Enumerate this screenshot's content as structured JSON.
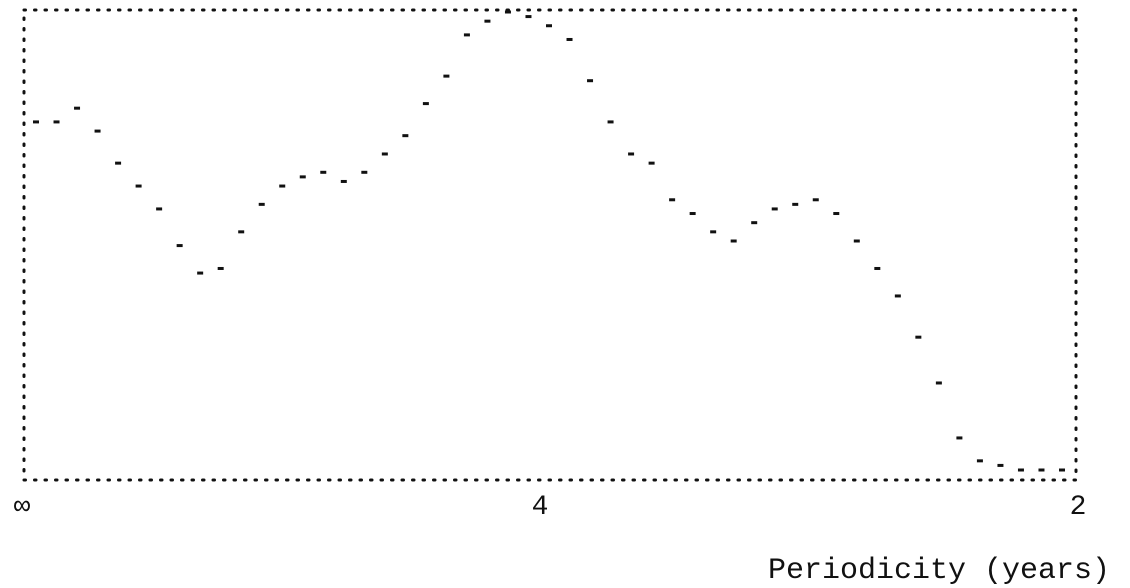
{
  "chart_data": {
    "type": "line",
    "xlabel": "Periodicity (years)",
    "ylabel": "",
    "x_ticks": [
      "∞",
      "4",
      "2"
    ],
    "grid": false,
    "frame_style": "dotted",
    "series_style": "dashed-dots",
    "color": "#111111",
    "ylim": [
      0,
      100
    ],
    "x": [
      0.0,
      0.02,
      0.04,
      0.06,
      0.08,
      0.1,
      0.12,
      0.14,
      0.16,
      0.18,
      0.2,
      0.22,
      0.24,
      0.26,
      0.28,
      0.3,
      0.32,
      0.34,
      0.36,
      0.38,
      0.4,
      0.42,
      0.44,
      0.46,
      0.48,
      0.5,
      0.52,
      0.54,
      0.56,
      0.58,
      0.6,
      0.62,
      0.64,
      0.66,
      0.68,
      0.7,
      0.72,
      0.74,
      0.76,
      0.78,
      0.8,
      0.82,
      0.84,
      0.86,
      0.88,
      0.9,
      0.92,
      0.94,
      0.96,
      0.98,
      1.0
    ],
    "values": [
      76,
      76,
      79,
      74,
      67,
      62,
      57,
      49,
      43,
      44,
      52,
      58,
      62,
      64,
      65,
      63,
      65,
      69,
      73,
      80,
      86,
      95,
      98,
      100,
      99,
      97,
      94,
      85,
      76,
      69,
      67,
      59,
      56,
      52,
      50,
      54,
      57,
      58,
      59,
      56,
      50,
      44,
      38,
      29,
      19,
      7,
      2,
      1,
      0,
      0,
      0
    ]
  }
}
